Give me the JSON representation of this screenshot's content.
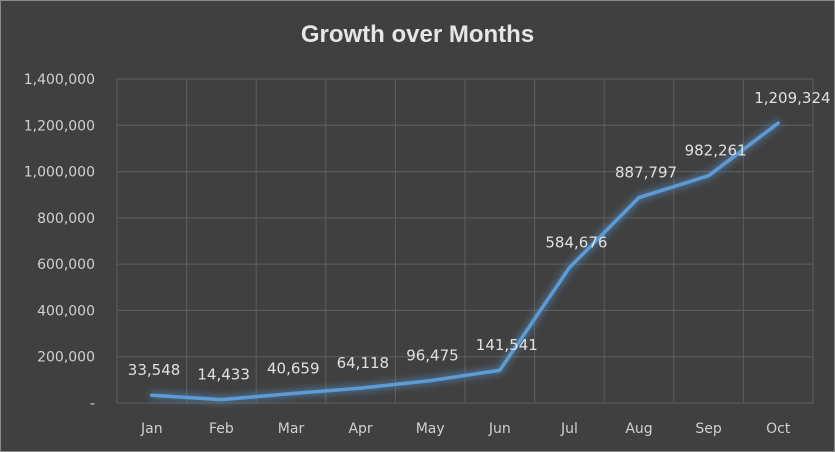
{
  "chart_data": {
    "type": "line",
    "title": "Growth over Months",
    "categories": [
      "Jan",
      "Feb",
      "Mar",
      "Apr",
      "May",
      "Jun",
      "Jul",
      "Aug",
      "Sep",
      "Oct"
    ],
    "values": [
      33548,
      14433,
      40659,
      64118,
      96475,
      141541,
      584676,
      887797,
      982261,
      1209324
    ],
    "data_labels": [
      "33,548",
      "14,433",
      "40,659",
      "64,118",
      "96,475",
      "141,541",
      "584,676",
      "887,797",
      "982,261",
      "1,209,324"
    ],
    "y_ticks": [
      0,
      200000,
      400000,
      600000,
      800000,
      1000000,
      1200000,
      1400000
    ],
    "y_tick_labels": [
      "-",
      "200,000",
      "400,000",
      "600,000",
      "800,000",
      "1,000,000",
      "1,200,000",
      "1,400,000"
    ],
    "ylim": [
      0,
      1400000
    ],
    "xlabel": "",
    "ylabel": "",
    "grid": true,
    "legend": "none",
    "colors": {
      "background": "#404040",
      "grid": "#5e5e5e",
      "line": "#5b9bd5",
      "text": "#d0d0d0",
      "title": "#e6e6e6"
    }
  }
}
